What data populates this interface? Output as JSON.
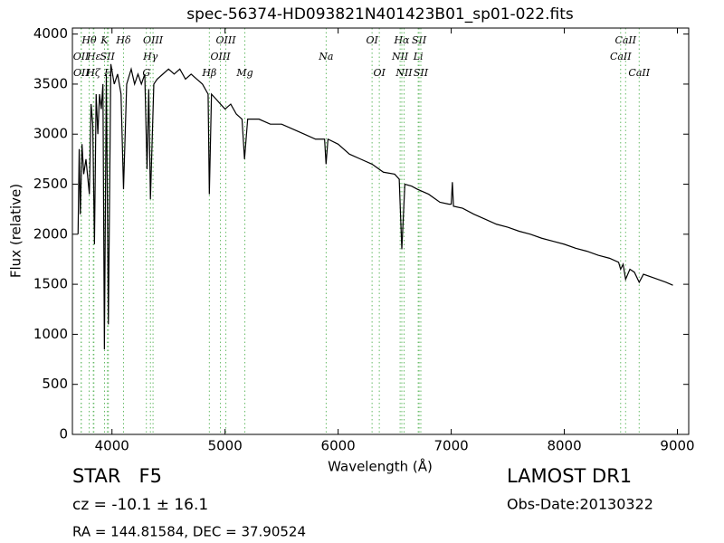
{
  "chart_data": {
    "type": "line",
    "title": "spec-56374-HD093821N401423B01_sp01-022.fits",
    "xlabel": "Wavelength (Å)",
    "ylabel": "Flux (relative)",
    "xlim": [
      3650,
      9100
    ],
    "ylim": [
      0,
      4060
    ],
    "xticks": [
      4000,
      5000,
      6000,
      7000,
      8000,
      9000
    ],
    "yticks": [
      0,
      500,
      1000,
      1500,
      2000,
      2500,
      3000,
      3500,
      4000
    ],
    "grid": false,
    "x": [
      3700,
      3710,
      3720,
      3735,
      3750,
      3770,
      3800,
      3815,
      3830,
      3845,
      3860,
      3875,
      3890,
      3905,
      3920,
      3933,
      3950,
      3968,
      3990,
      4020,
      4050,
      4080,
      4102,
      4130,
      4170,
      4200,
      4230,
      4260,
      4290,
      4310,
      4325,
      4340,
      4370,
      4400,
      4450,
      4500,
      4550,
      4600,
      4650,
      4700,
      4750,
      4800,
      4850,
      4861,
      4880,
      4920,
      4960,
      5000,
      5050,
      5100,
      5150,
      5172,
      5200,
      5300,
      5400,
      5500,
      5600,
      5700,
      5800,
      5880,
      5893,
      5910,
      6000,
      6100,
      6200,
      6300,
      6400,
      6500,
      6540,
      6563,
      6590,
      6650,
      6700,
      6800,
      6900,
      6980,
      7000,
      7010,
      7020,
      7100,
      7200,
      7300,
      7400,
      7500,
      7600,
      7700,
      7800,
      7900,
      8000,
      8100,
      8200,
      8300,
      8400,
      8480,
      8498,
      8520,
      8542,
      8580,
      8620,
      8662,
      8700,
      8800,
      8900,
      8960
    ],
    "series": [
      {
        "name": "Flux",
        "color": "#000000",
        "values": [
          2000,
          2850,
          2200,
          2900,
          2600,
          2750,
          2400,
          3300,
          3100,
          1900,
          3400,
          3000,
          3400,
          3250,
          3500,
          850,
          3600,
          1100,
          3700,
          3500,
          3600,
          3400,
          2450,
          3500,
          3650,
          3500,
          3600,
          3500,
          3600,
          2650,
          3450,
          2350,
          3500,
          3550,
          3600,
          3650,
          3600,
          3650,
          3550,
          3600,
          3550,
          3500,
          3400,
          2400,
          3400,
          3350,
          3300,
          3250,
          3300,
          3200,
          3150,
          2750,
          3150,
          3150,
          3100,
          3100,
          3050,
          3000,
          2950,
          2950,
          2700,
          2950,
          2900,
          2800,
          2750,
          2700,
          2620,
          2600,
          2550,
          1850,
          2500,
          2480,
          2450,
          2400,
          2320,
          2300,
          2300,
          2520,
          2280,
          2260,
          2200,
          2150,
          2100,
          2070,
          2030,
          2000,
          1960,
          1930,
          1900,
          1860,
          1830,
          1790,
          1760,
          1720,
          1650,
          1700,
          1550,
          1650,
          1620,
          1520,
          1600,
          1560,
          1520,
          1490
        ]
      }
    ],
    "line_color": "#66bb66",
    "line_labels": [
      [
        {
          "wavelength": 3798,
          "label": "Hθ"
        },
        {
          "wavelength": 3934,
          "label": "K"
        },
        {
          "wavelength": 4102,
          "label": "Hδ"
        },
        {
          "wavelength": 4363,
          "label": "OIII"
        },
        {
          "wavelength": 5007,
          "label": "OIII"
        },
        {
          "wavelength": 6300,
          "label": "OI"
        },
        {
          "wavelength": 6563,
          "label": "Hα"
        },
        {
          "wavelength": 6716,
          "label": "SII"
        },
        {
          "wavelength": 8542,
          "label": "CaII"
        }
      ],
      [
        {
          "wavelength": 3727,
          "label": "OII"
        },
        {
          "wavelength": 3840,
          "label": "Hε"
        },
        {
          "wavelength": 3960,
          "label": "SII"
        },
        {
          "wavelength": 4340,
          "label": "Hγ"
        },
        {
          "wavelength": 4959,
          "label": "OIII"
        },
        {
          "wavelength": 5894,
          "label": "Na"
        },
        {
          "wavelength": 6548,
          "label": "NII"
        },
        {
          "wavelength": 6708,
          "label": "Li"
        },
        {
          "wavelength": 8498,
          "label": "CaII"
        }
      ],
      [
        {
          "wavelength": 3729,
          "label": "OII"
        },
        {
          "wavelength": 3835,
          "label": "Hζ"
        },
        {
          "wavelength": 3968,
          "label": "H"
        },
        {
          "wavelength": 4304,
          "label": "G"
        },
        {
          "wavelength": 4861,
          "label": "Hβ"
        },
        {
          "wavelength": 5175,
          "label": "Mg"
        },
        {
          "wavelength": 6364,
          "label": "OI"
        },
        {
          "wavelength": 6583,
          "label": "NII"
        },
        {
          "wavelength": 6731,
          "label": "SII"
        },
        {
          "wavelength": 8662,
          "label": "CaII"
        }
      ]
    ]
  },
  "footer": {
    "object": "STAR   F5",
    "redshift": "cz = -10.1 ± 16.1",
    "coords": "RA = 144.81584, DEC = 37.90524",
    "survey": "LAMOST DR1",
    "obs_date": "Obs-Date:20130322"
  }
}
